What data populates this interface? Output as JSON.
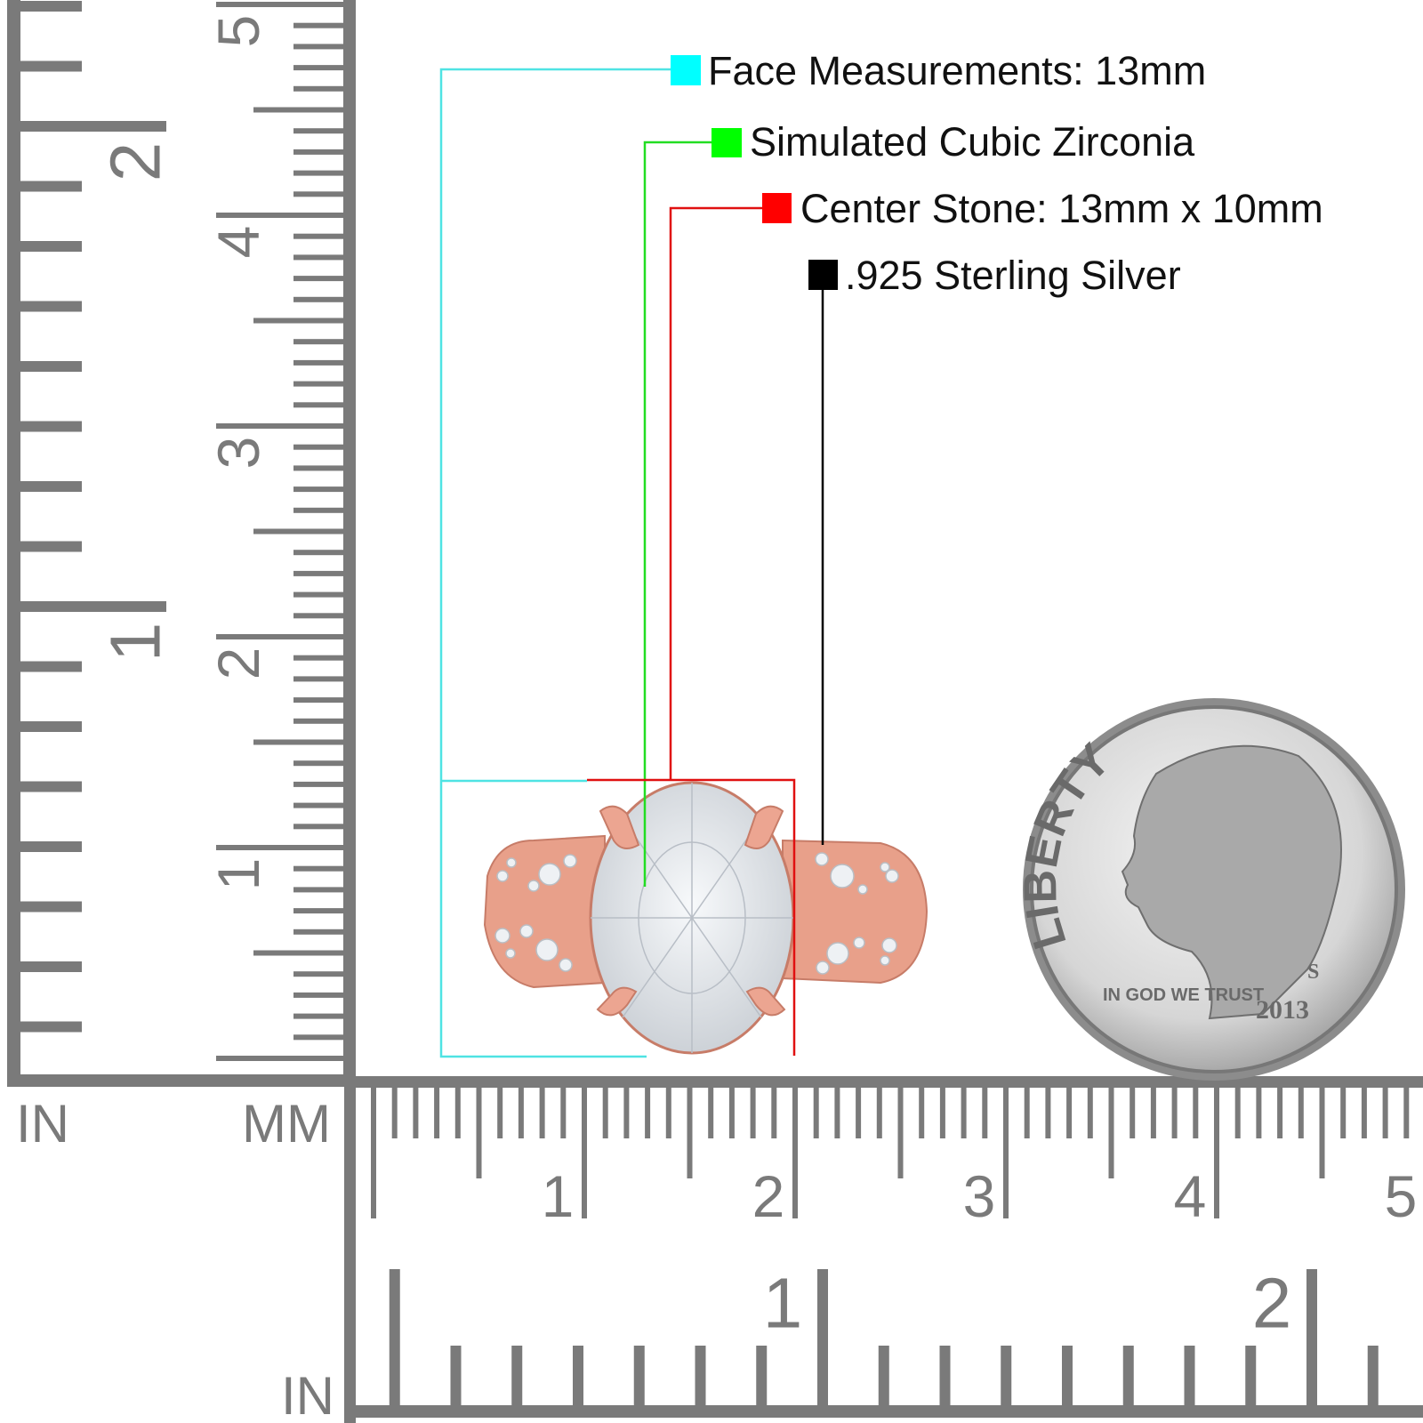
{
  "legend": [
    {
      "text": "Face Measurements: 13mm",
      "color": "#00ffff"
    },
    {
      "text": "Simulated Cubic Zirconia",
      "color": "#00ff00"
    },
    {
      "text": "Center Stone: 13mm x 10mm",
      "color": "#ff0000"
    },
    {
      "text": ".925 Sterling Silver",
      "color": "#000000"
    }
  ],
  "rulers": {
    "color": "#7a7a7a",
    "left_unit_in": "IN",
    "left_unit_mm": "MM",
    "bottom_unit_in": "IN",
    "vertical_cm_labels": [
      "1",
      "2",
      "3",
      "4",
      "5"
    ],
    "vertical_in_labels": [
      "1",
      "2"
    ],
    "horizontal_cm_labels": [
      "1",
      "2",
      "3",
      "4",
      "5"
    ],
    "horizontal_in_labels": [
      "1",
      "2"
    ]
  },
  "product": {
    "metal_color": "#e8a08a",
    "stone_color": "#e6eaee"
  },
  "coin": {
    "legend": "LIBERTY",
    "motto": "IN GOD WE TRUST",
    "year": "2013",
    "mint_mark": "S"
  }
}
